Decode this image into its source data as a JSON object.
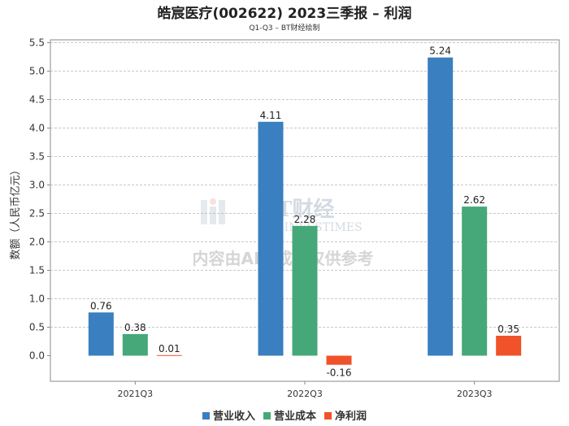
{
  "chart_data": {
    "type": "bar",
    "title": "皓宸医疗(002622) 2023三季报 – 利润",
    "subtitle": "Q1-Q3 – BT财经绘制",
    "ylabel": "数额（人民币亿元）",
    "xlabel": "",
    "categories": [
      "2021Q3",
      "2022Q3",
      "2023Q3"
    ],
    "yticks": [
      "0.0",
      "0.5",
      "1.0",
      "1.5",
      "2.0",
      "2.5",
      "3.0",
      "3.5",
      "4.0",
      "4.5",
      "5.0",
      "5.5"
    ],
    "ylim": [
      -0.35,
      5.5
    ],
    "grid": true,
    "legend_position": "bottom",
    "series": [
      {
        "name": "营业收入",
        "color": "#3a7fbf",
        "values": [
          0.76,
          4.11,
          5.24
        ],
        "labels": [
          "0.76",
          "4.11",
          "5.24"
        ]
      },
      {
        "name": "营业成本",
        "color": "#46a878",
        "values": [
          0.38,
          2.28,
          2.62
        ],
        "labels": [
          "0.38",
          "2.28",
          "2.62"
        ]
      },
      {
        "name": "净利润",
        "color": "#f0522a",
        "values": [
          0.01,
          -0.16,
          0.35
        ],
        "labels": [
          "0.01",
          "-0.16",
          "0.35"
        ]
      }
    ]
  },
  "watermark": {
    "logo_text": "BT财经",
    "logo_sub": "BUSINESSTIMES",
    "notice": "内容由AI生成，仅供参考"
  }
}
